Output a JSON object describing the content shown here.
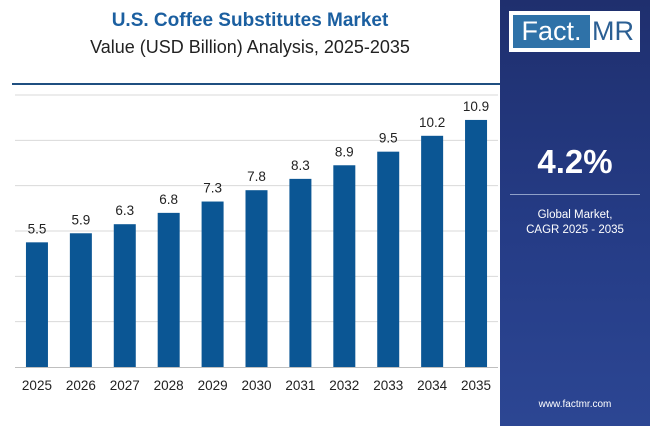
{
  "header": {
    "title": "U.S. Coffee Substitutes Market",
    "subtitle": "Value (USD Billion) Analysis, 2025-2035"
  },
  "brand": {
    "logo_part1": "Fact",
    "logo_separator": ".",
    "logo_part2": "MR",
    "url": "www.factmr.com"
  },
  "sidebar": {
    "cagr_value": "4.2%",
    "cagr_label_line1": "Global Market,",
    "cagr_label_line2": "CAGR 2025 - 2035"
  },
  "colors": {
    "bar": "#0b5694",
    "title": "#1b5fa0",
    "sidebar": "#253c86",
    "grid": "#d9d9d9"
  },
  "chart_data": {
    "type": "bar",
    "title": "U.S. Coffee Substitutes Market",
    "subtitle": "Value (USD Billion) Analysis, 2025-2035",
    "categories": [
      "2025",
      "2026",
      "2027",
      "2028",
      "2029",
      "2030",
      "2031",
      "2032",
      "2033",
      "2034",
      "2035"
    ],
    "values": [
      5.5,
      5.9,
      6.3,
      6.8,
      7.3,
      7.8,
      8.3,
      8.9,
      9.5,
      10.2,
      10.9
    ],
    "value_labels": [
      "5.5",
      "5.9",
      "6.3",
      "6.8",
      "7.3",
      "7.8",
      "8.3",
      "8.9",
      "9.5",
      "10.2",
      "10.9"
    ],
    "xlabel": "",
    "ylabel": "",
    "ylim": [
      0,
      12
    ],
    "grid": true,
    "legend": "none"
  }
}
